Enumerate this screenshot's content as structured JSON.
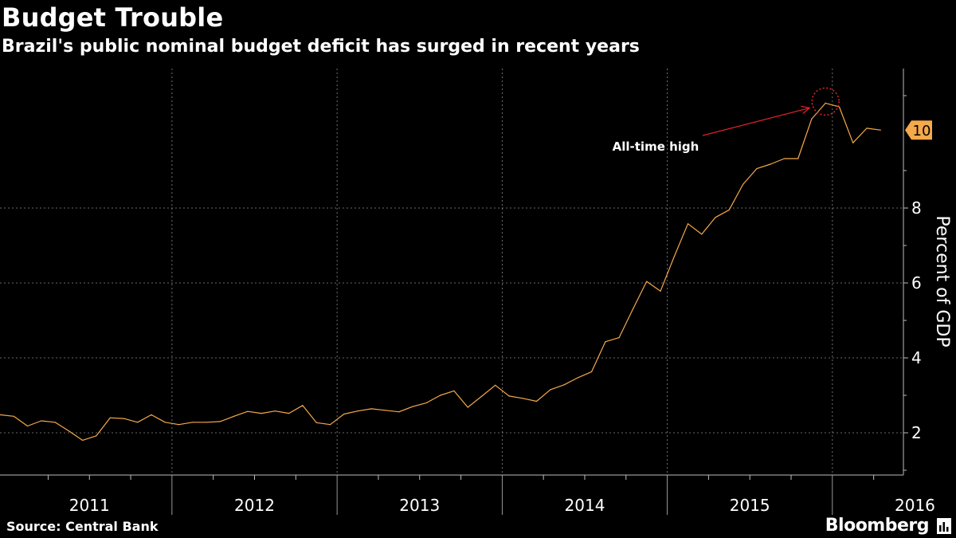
{
  "header": {
    "title": "Budget Trouble",
    "subtitle": "Brazil's public nominal budget deficit has surged in recent years"
  },
  "footer": {
    "source": "Source: Central Bank",
    "brand": "Bloomberg"
  },
  "colors": {
    "background": "#000000",
    "line": "#f5a94a",
    "annotation": "#e8232a",
    "last_value_tag": "#f5a94a",
    "grid": "#8a8a8a",
    "text": "#ffffff"
  },
  "chart_data": {
    "type": "line",
    "title": "Budget Trouble",
    "subtitle": "Brazil's public nominal budget deficit has surged in recent years",
    "xlabel": "",
    "ylabel": "Percent of GDP",
    "x_tick_labels": [
      "2011",
      "2012",
      "2013",
      "2014",
      "2015",
      "2016"
    ],
    "y_ticks": [
      2,
      4,
      6,
      8
    ],
    "ylim": [
      1,
      11.8
    ],
    "grid": true,
    "y_axis_side": "right",
    "last_value_label": "10",
    "annotation": {
      "text": "All-time high",
      "target_date": "2015-12"
    },
    "series": [
      {
        "x": [
          "2010-12",
          "2011-01",
          "2011-02",
          "2011-03",
          "2011-04",
          "2011-05",
          "2011-06",
          "2011-07",
          "2011-08",
          "2011-09",
          "2011-10",
          "2011-11",
          "2011-12",
          "2012-01",
          "2012-02",
          "2012-03",
          "2012-04",
          "2012-05",
          "2012-06",
          "2012-07",
          "2012-08",
          "2012-09",
          "2012-10",
          "2012-11",
          "2012-12",
          "2013-01",
          "2013-02",
          "2013-03",
          "2013-04",
          "2013-05",
          "2013-06",
          "2013-07",
          "2013-08",
          "2013-09",
          "2013-10",
          "2013-11",
          "2013-12",
          "2014-01",
          "2014-02",
          "2014-03",
          "2014-04",
          "2014-05",
          "2014-06",
          "2014-07",
          "2014-08",
          "2014-09",
          "2014-10",
          "2014-11",
          "2014-12",
          "2015-01",
          "2015-02",
          "2015-03",
          "2015-04",
          "2015-05",
          "2015-06",
          "2015-07",
          "2015-08",
          "2015-09",
          "2015-10",
          "2015-11",
          "2015-12",
          "2016-01",
          "2016-02",
          "2016-03",
          "2016-04"
        ],
        "values": [
          2.48,
          2.44,
          2.18,
          2.32,
          2.28,
          2.05,
          1.8,
          1.92,
          2.4,
          2.38,
          2.28,
          2.48,
          2.28,
          2.22,
          2.28,
          2.28,
          2.3,
          2.44,
          2.57,
          2.52,
          2.58,
          2.52,
          2.73,
          2.27,
          2.22,
          2.5,
          2.58,
          2.64,
          2.6,
          2.56,
          2.7,
          2.8,
          3.0,
          3.12,
          2.68,
          2.97,
          3.27,
          2.98,
          2.92,
          2.84,
          3.15,
          3.28,
          3.47,
          3.63,
          4.43,
          4.54,
          5.3,
          6.04,
          5.78,
          6.7,
          7.58,
          7.3,
          7.75,
          7.95,
          8.63,
          9.05,
          9.17,
          9.32,
          9.32,
          10.38,
          10.8,
          10.7,
          9.74,
          10.13,
          10.08
        ]
      }
    ]
  }
}
